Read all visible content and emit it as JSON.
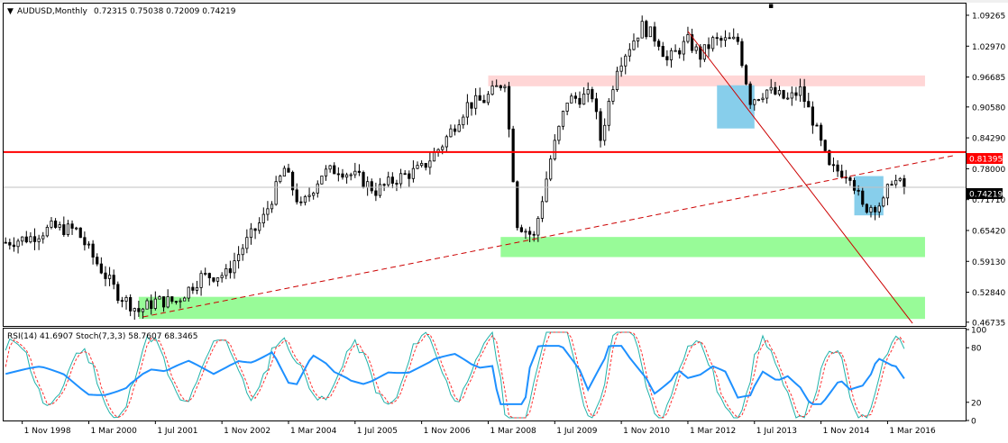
{
  "chart_data": [
    {
      "type": "candlestick",
      "symbol_label": "AUDUSD,Monthly",
      "ohlc_text": "0.72315 0.75038 0.72009 0.74219",
      "price_axis_ticks": [
        "1.09265",
        "1.02970",
        "0.96685",
        "0.90580",
        "0.84290",
        "0.78000",
        "0.71710",
        "0.65420",
        "0.59130",
        "0.52840",
        "0.46735"
      ],
      "price_axis_values": [
        1.09265,
        1.0297,
        0.96685,
        0.9058,
        0.8429,
        0.78,
        0.7171,
        0.6542,
        0.5913,
        0.5284,
        0.46735
      ],
      "ylim": [
        0.4597,
        1.1164
      ],
      "current_price": {
        "label": "0.74219",
        "value": 0.74219
      },
      "horizontal_line": {
        "label": "0.81395",
        "value": 0.81395,
        "color": "#ff0000"
      },
      "zones": [
        {
          "color": "#ffd6d6",
          "y_range": [
            0.948,
            0.97
          ],
          "x_range": [
            "2008-03",
            "2016-12"
          ]
        },
        {
          "color": "#98fb98",
          "y_range": [
            0.6,
            0.641
          ],
          "x_range": [
            "2008-06",
            "2016-12"
          ]
        },
        {
          "color": "#98fb98",
          "y_range": [
            0.474,
            0.519
          ],
          "x_range": [
            "2001-03",
            "2016-12"
          ]
        }
      ],
      "highlight_boxes": [
        {
          "color": "#87ceeb",
          "y_range": [
            0.862,
            0.95
          ],
          "x_range": [
            "2012-10",
            "2013-07"
          ]
        },
        {
          "color": "#87ceeb",
          "y_range": [
            0.685,
            0.765
          ],
          "x_range": [
            "2015-07",
            "2016-02"
          ]
        }
      ],
      "trendlines": [
        {
          "style": "dashed",
          "color": "#cc0000",
          "from": [
            "2001-04",
            0.478
          ],
          "to": [
            "2017-07",
            0.807
          ]
        },
        {
          "style": "solid",
          "color": "#cc0000",
          "from": [
            "2012-03",
            1.06
          ],
          "to": [
            "2016-09",
            0.465
          ]
        }
      ],
      "x_ticks": [
        "1 Nov 1998",
        "1 Mar 2000",
        "1 Jul 2001",
        "1 Nov 2002",
        "1 Mar 2004",
        "1 Jul 2005",
        "1 Nov 2006",
        "1 Mar 2008",
        "1 Jul 2009",
        "1 Nov 2010",
        "1 Mar 2012",
        "1 Jul 2013",
        "1 Nov 2014",
        "1 Mar 2016"
      ],
      "anchors": [
        [
          "1998-07",
          0.63
        ],
        [
          "1999-01",
          0.64
        ],
        [
          "1999-06",
          0.66
        ],
        [
          "1999-12",
          0.655
        ],
        [
          "2000-04",
          0.6
        ],
        [
          "2000-10",
          0.525
        ],
        [
          "2001-03",
          0.49
        ],
        [
          "2001-07",
          0.51
        ],
        [
          "2001-12",
          0.51
        ],
        [
          "2002-06",
          0.56
        ],
        [
          "2002-12",
          0.565
        ],
        [
          "2003-04",
          0.62
        ],
        [
          "2003-09",
          0.68
        ],
        [
          "2004-02",
          0.78
        ],
        [
          "2004-06",
          0.7
        ],
        [
          "2004-11",
          0.77
        ],
        [
          "2005-03",
          0.78
        ],
        [
          "2005-08",
          0.76
        ],
        [
          "2005-12",
          0.735
        ],
        [
          "2006-05",
          0.76
        ],
        [
          "2006-11",
          0.78
        ],
        [
          "2007-04",
          0.83
        ],
        [
          "2007-10",
          0.91
        ],
        [
          "2008-02",
          0.92
        ],
        [
          "2008-07",
          0.96
        ],
        [
          "2008-08",
          0.86
        ],
        [
          "2008-10",
          0.67
        ],
        [
          "2009-02",
          0.64
        ],
        [
          "2009-06",
          0.8
        ],
        [
          "2009-10",
          0.92
        ],
        [
          "2010-04",
          0.93
        ],
        [
          "2010-06",
          0.84
        ],
        [
          "2010-10",
          0.99
        ],
        [
          "2011-04",
          1.07
        ],
        [
          "2011-08",
          1.04
        ],
        [
          "2011-10",
          1.0
        ],
        [
          "2012-03",
          1.04
        ],
        [
          "2012-06",
          1.01
        ],
        [
          "2012-09",
          1.04
        ],
        [
          "2013-01",
          1.04
        ],
        [
          "2013-03",
          1.04
        ],
        [
          "2013-06",
          0.92
        ],
        [
          "2013-10",
          0.94
        ],
        [
          "2014-03",
          0.92
        ],
        [
          "2014-06",
          0.94
        ],
        [
          "2014-09",
          0.88
        ],
        [
          "2015-01",
          0.78
        ],
        [
          "2015-06",
          0.77
        ],
        [
          "2015-09",
          0.7
        ],
        [
          "2016-02",
          0.71
        ],
        [
          "2016-04",
          0.76
        ],
        [
          "2016-07",
          0.74219
        ]
      ]
    },
    {
      "type": "line",
      "indicator_label": "RSI(14) 41.6907 Stoch(7,3,3) 58.7607 68.3465",
      "ylim": [
        0,
        100
      ],
      "y_ticks": [
        "100",
        "80",
        "20",
        "0"
      ],
      "y_tick_values": [
        100,
        80,
        20,
        0
      ],
      "series": [
        {
          "name": "RSI(14)",
          "color": "#1e90ff",
          "last": 41.6907
        },
        {
          "name": "Stoch(7,3,3)",
          "color": "#20b2aa",
          "last": 58.7607
        },
        {
          "name": "Stoch(7,3,3)",
          "color": "#ff3030",
          "style": "dashed",
          "last": 68.3465
        }
      ]
    }
  ]
}
